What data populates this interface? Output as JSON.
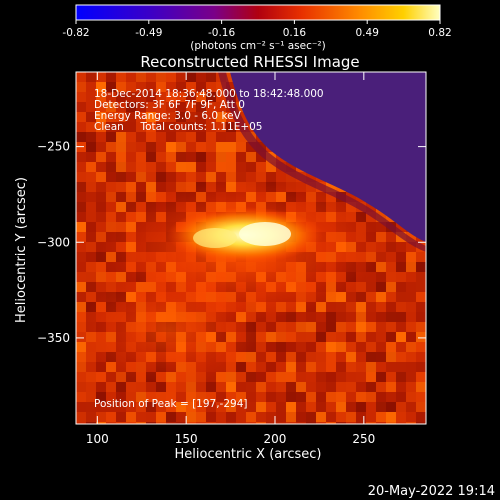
{
  "chart_data": {
    "type": "heatmap",
    "title": "Reconstructed RHESSI Image",
    "xlabel": "Heliocentric X (arcsec)",
    "ylabel": "Heliocentric Y (arcsec)",
    "xlim": [
      88,
      285
    ],
    "ylim": [
      -395,
      -211
    ],
    "x_ticks": [
      100,
      150,
      200,
      250
    ],
    "y_ticks": [
      -250,
      -300,
      -350
    ],
    "colorbar": {
      "ticks": [
        "-0.82",
        "-0.49",
        "-0.16",
        "0.16",
        "0.49",
        "0.82"
      ],
      "range": [
        -0.82,
        0.82
      ],
      "unit_label": "(photons cm⁻² s⁻¹ asec⁻²)",
      "colors": [
        "#0000ff",
        "#6a00a0",
        "#c00000",
        "#ff4400",
        "#ffb000",
        "#ffffa0"
      ]
    },
    "annotations": [
      "18-Dec-2014 18:36:48.000 to 18:42:48.000",
      "Detectors: 3F 6F 7F 9F, Att 0",
      "Energy Range: 3.0 - 6.0 keV",
      "Clean     Total counts: 1.11E+05"
    ],
    "peak_label": "Position of Peak = [197,-294]",
    "peak_position": [
      197,
      -294
    ],
    "background_colors": {
      "low_corner": "#4a1f7a",
      "mid": "#c82800",
      "peak": "#ffffc0"
    }
  },
  "footer": {
    "timestamp": "20-May-2022 19:14"
  }
}
